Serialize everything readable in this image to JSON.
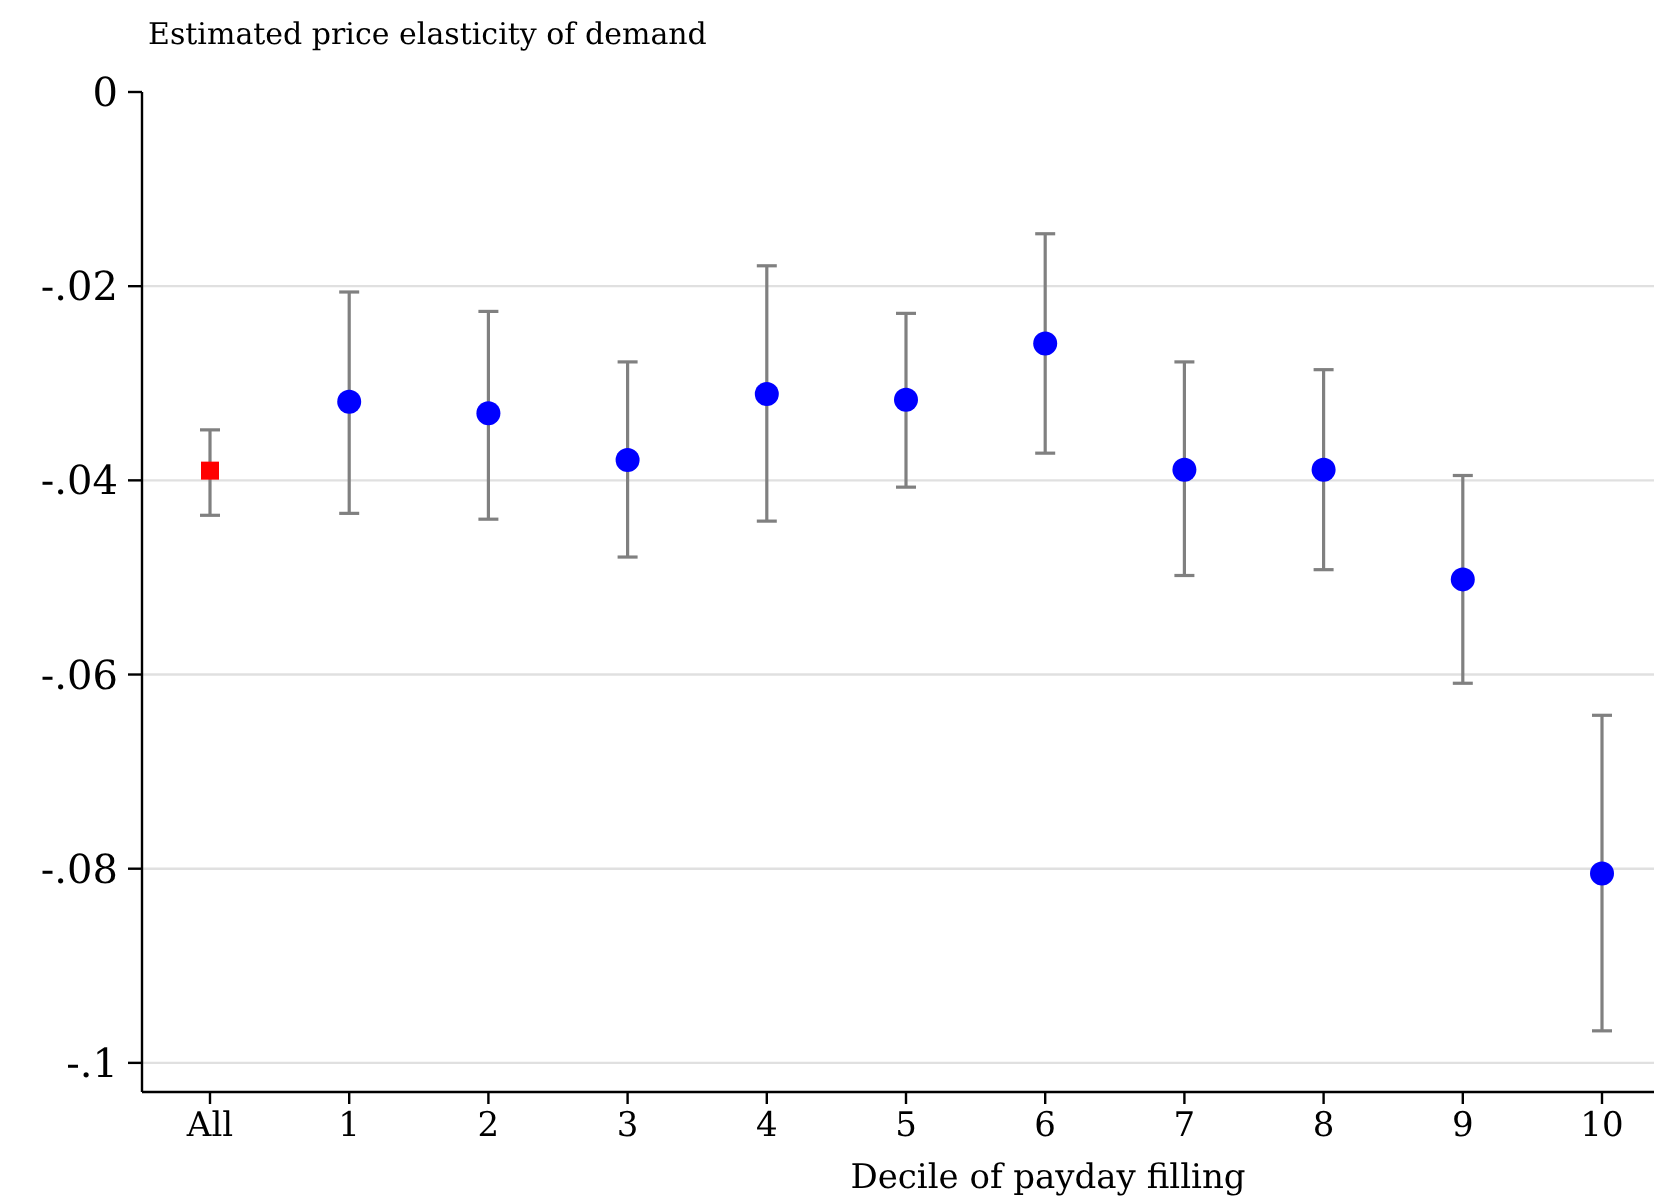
{
  "chart_data": {
    "type": "scatter",
    "ylabel": "Estimated price elasticity of demand",
    "xlabel": "Decile of payday filling",
    "categories": [
      "All",
      "1",
      "2",
      "3",
      "4",
      "5",
      "6",
      "7",
      "8",
      "9",
      "10"
    ],
    "series": [
      {
        "color": "#ff0000",
        "marker": "square",
        "values": [
          -0.039,
          null,
          null,
          null,
          null,
          null,
          null,
          null,
          null,
          null,
          null
        ],
        "errors": [
          [
            -0.0436,
            -0.0348
          ],
          null,
          null,
          null,
          null,
          null,
          null,
          null,
          null,
          null,
          null
        ]
      },
      {
        "color": "#0000ff",
        "marker": "circle",
        "values": [
          null,
          -0.0319,
          -0.0331,
          -0.0379,
          -0.0311,
          -0.0317,
          -0.0259,
          -0.0389,
          -0.0389,
          -0.0502,
          -0.0805
        ],
        "errors": [
          null,
          [
            -0.0434,
            -0.0206
          ],
          [
            -0.044,
            -0.0226
          ],
          [
            -0.0479,
            -0.0278
          ],
          [
            -0.0442,
            -0.0179
          ],
          [
            -0.0407,
            -0.0228
          ],
          [
            -0.0372,
            -0.0146
          ],
          [
            -0.0498,
            -0.0278
          ],
          [
            -0.0492,
            -0.0286
          ],
          [
            -0.0609,
            -0.0395
          ],
          [
            -0.0967,
            -0.0642
          ]
        ]
      }
    ],
    "ylim": [
      -0.103,
      0
    ],
    "yticks": [
      {
        "value": 0,
        "label": "0"
      },
      {
        "value": -0.02,
        "label": "-.02"
      },
      {
        "value": -0.04,
        "label": "-.04"
      },
      {
        "value": -0.06,
        "label": "-.06"
      },
      {
        "value": -0.08,
        "label": "-.08"
      },
      {
        "value": -0.1,
        "label": "-.1"
      }
    ],
    "grid": "y"
  }
}
